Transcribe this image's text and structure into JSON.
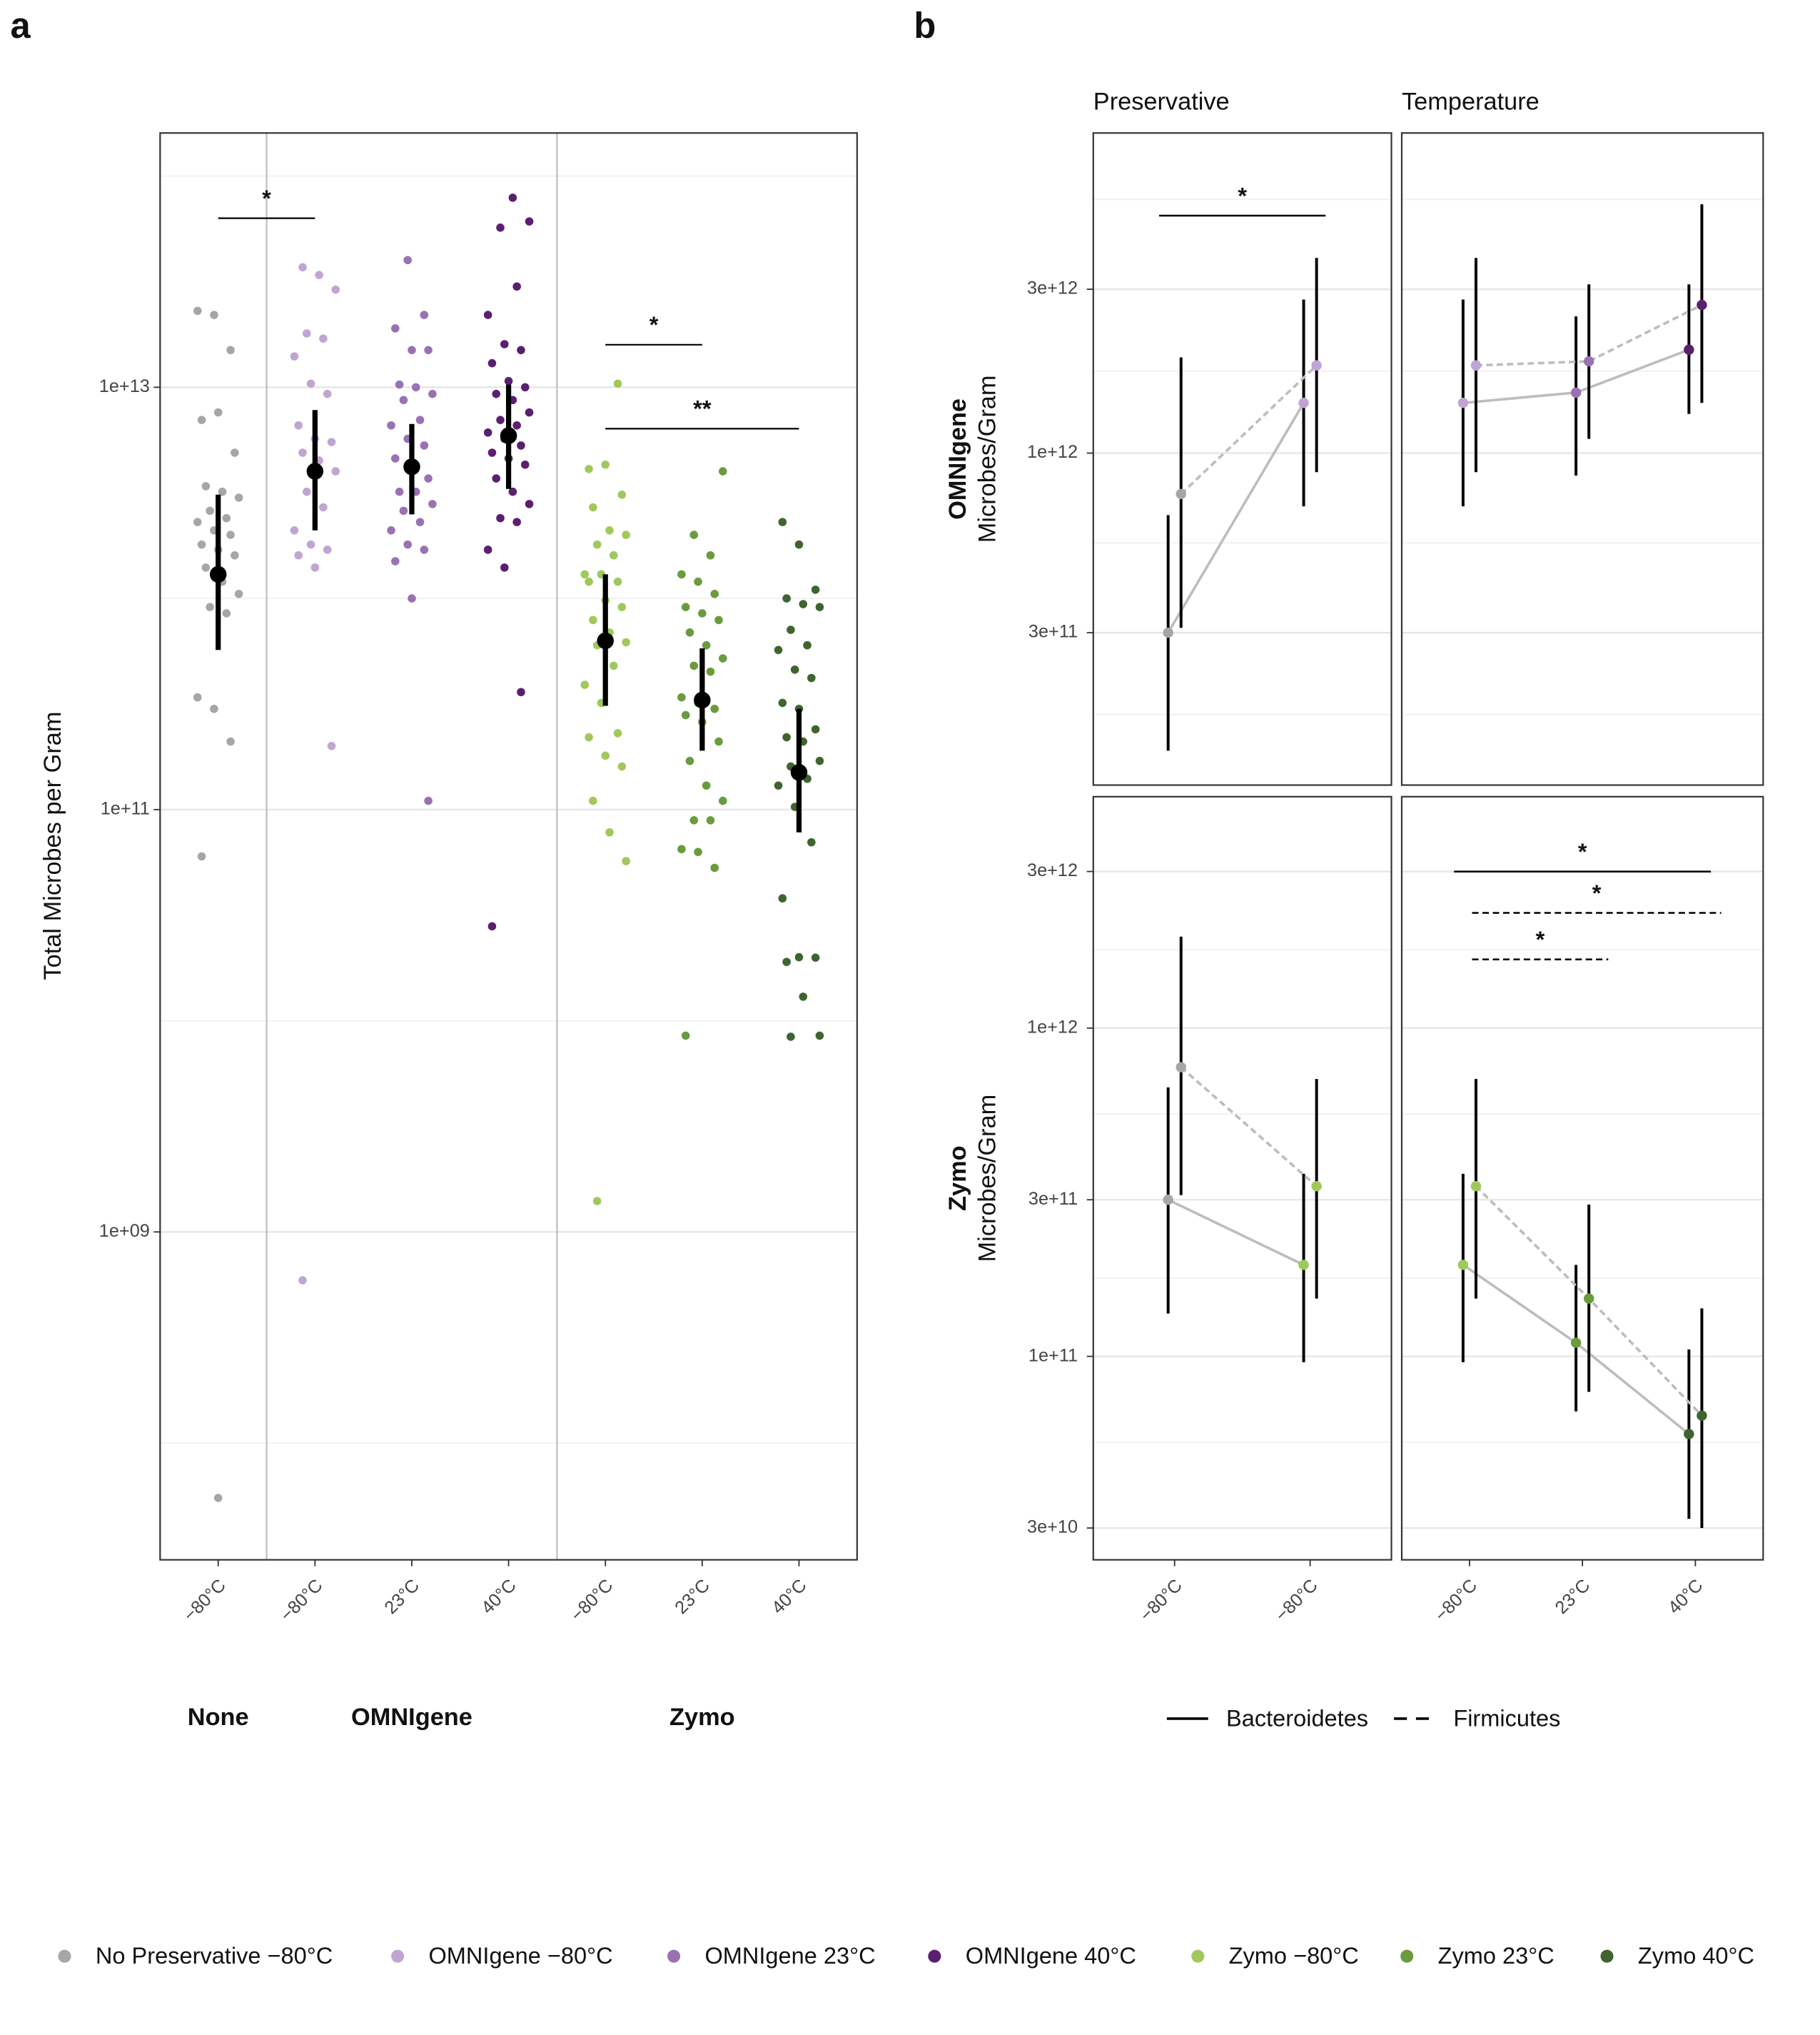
{
  "panel_labels": [
    "a",
    "b"
  ],
  "chart_data": [
    {
      "type": "strip",
      "ylabel": "Total Microbes per Gram",
      "log_y": true,
      "ylim": [
        28000000.0,
        160000000000000.0
      ],
      "yticks": [
        {
          "value": 1000000000.0,
          "label": "1e+09"
        },
        {
          "value": 100000000000.0,
          "label": "1e+11"
        },
        {
          "value": 10000000000000.0,
          "label": "1e+13"
        }
      ],
      "categories": [
        "−80°C",
        "−80°C",
        "23°C",
        "40°C",
        "−80°C",
        "23°C",
        "40°C"
      ],
      "groups": [
        {
          "label": "None",
          "size": 1
        },
        {
          "label": "OMNIgene",
          "size": 3
        },
        {
          "label": "Zymo",
          "size": 3
        }
      ],
      "brackets": [
        {
          "label": "*",
          "between": [
            0,
            1
          ]
        },
        {
          "label": "*",
          "between": [
            4,
            5
          ]
        },
        {
          "label": "**",
          "between": [
            4,
            6
          ]
        }
      ],
      "series": [
        {
          "name": "No Preservative −80°C",
          "color": "#a6a6a6",
          "mean": 1300000000000.0,
          "lower": 570000000000.0,
          "upper": 3100000000000.0,
          "values": [
            23000000000000.0,
            22000000000000.0,
            15000000000000.0,
            7000000000000.0,
            7600000000000.0,
            4900000000000.0,
            3400000000000.0,
            3200000000000.0,
            3000000000000.0,
            2600000000000.0,
            2400000000000.0,
            2300000000000.0,
            2100000000000.0,
            2000000000000.0,
            1800000000000.0,
            1700000000000.0,
            1600000000000.0,
            1400000000000.0,
            1200000000000.0,
            1050000000000.0,
            910000000000.0,
            850000000000.0,
            340000000000.0,
            300000000000.0,
            210000000000.0,
            60000000000.0,
            55000000.0
          ]
        },
        {
          "name": "OMNIgene −80°C",
          "color": "#c0a5d2",
          "mean": 4000000000000.0,
          "lower": 2100000000000.0,
          "upper": 7800000000000.0,
          "values": [
            37000000000000.0,
            34000000000000.0,
            29000000000000.0,
            18000000000000.0,
            17000000000000.0,
            14000000000000.0,
            10400000000000.0,
            9300000000000.0,
            6600000000000.0,
            5700000000000.0,
            5500000000000.0,
            4900000000000.0,
            4500000000000.0,
            4000000000000.0,
            3200000000000.0,
            2700000000000.0,
            2100000000000.0,
            1800000000000.0,
            1700000000000.0,
            1600000000000.0,
            1400000000000.0,
            200000000000.0,
            590000000.0
          ]
        },
        {
          "name": "OMNIgene 23°C",
          "color": "#9a72b3",
          "mean": 4200000000000.0,
          "lower": 2500000000000.0,
          "upper": 6700000000000.0,
          "values": [
            40000000000000.0,
            22000000000000.0,
            19000000000000.0,
            15000000000000.0,
            15000000000000.0,
            10300000000000.0,
            10000000000000.0,
            9300000000000.0,
            8700000000000.0,
            7000000000000.0,
            6600000000000.0,
            5700000000000.0,
            5300000000000.0,
            4600000000000.0,
            4000000000000.0,
            3700000000000.0,
            3200000000000.0,
            3200000000000.0,
            2800000000000.0,
            2600000000000.0,
            2300000000000.0,
            2100000000000.0,
            1800000000000.0,
            1700000000000.0,
            1500000000000.0,
            1000000000000.0,
            110000000000.0
          ]
        },
        {
          "name": "OMNIgene 40°C",
          "color": "#5b1f70",
          "mean": 5900000000000.0,
          "lower": 3300000000000.0,
          "upper": 10300000000000.0,
          "values": [
            79000000000000.0,
            61000000000000.0,
            57000000000000.0,
            30000000000000.0,
            22000000000000.0,
            16000000000000.0,
            15000000000000.0,
            13000000000000.0,
            10700000000000.0,
            10000000000000.0,
            9300000000000.0,
            8700000000000.0,
            7600000000000.0,
            7000000000000.0,
            6600000000000.0,
            6100000000000.0,
            5700000000000.0,
            5300000000000.0,
            4900000000000.0,
            4600000000000.0,
            4300000000000.0,
            3700000000000.0,
            3200000000000.0,
            2800000000000.0,
            2400000000000.0,
            2300000000000.0,
            1700000000000.0,
            1400000000000.0,
            360000000000.0,
            28000000000.0
          ]
        },
        {
          "name": "Zymo −80°C",
          "color": "#a0c95a",
          "mean": 630000000000.0,
          "lower": 310000000000.0,
          "upper": 1300000000000.0,
          "values": [
            10400000000000.0,
            4100000000000.0,
            4300000000000.0,
            3100000000000.0,
            2700000000000.0,
            2100000000000.0,
            2000000000000.0,
            1800000000000.0,
            1600000000000.0,
            1300000000000.0,
            1300000000000.0,
            1200000000000.0,
            1200000000000.0,
            980000000000.0,
            910000000000.0,
            790000000000.0,
            690000000000.0,
            620000000000.0,
            600000000000.0,
            480000000000.0,
            390000000000.0,
            320000000000.0,
            230000000000.0,
            220000000000.0,
            180000000000.0,
            160000000000.0,
            110000000000.0,
            78000000000.0,
            57000000000.0,
            1400000000.0
          ]
        },
        {
          "name": "Zymo 23°C",
          "color": "#6a9b3d",
          "mean": 330000000000.0,
          "lower": 190000000000.0,
          "upper": 580000000000.0,
          "values": [
            4000000000000.0,
            2000000000000.0,
            1600000000000.0,
            1300000000000.0,
            1200000000000.0,
            1050000000000.0,
            910000000000.0,
            850000000000.0,
            790000000000.0,
            690000000000.0,
            600000000000.0,
            520000000000.0,
            480000000000.0,
            450000000000.0,
            340000000000.0,
            320000000000.0,
            300000000000.0,
            280000000000.0,
            260000000000.0,
            210000000000.0,
            170000000000.0,
            130000000000.0,
            110000000000.0,
            89000000000.0,
            89000000000.0,
            65000000000.0,
            63000000000.0,
            53000000000.0,
            8500000000.0
          ]
        },
        {
          "name": "Zymo 40°C",
          "color": "#3f6430",
          "mean": 150000000000.0,
          "lower": 78000000000.0,
          "upper": 300000000000.0,
          "values": [
            2300000000000.0,
            1800000000000.0,
            1100000000000.0,
            1000000000000.0,
            940000000000.0,
            910000000000.0,
            710000000000.0,
            600000000000.0,
            570000000000.0,
            460000000000.0,
            420000000000.0,
            320000000000.0,
            300000000000.0,
            240000000000.0,
            220000000000.0,
            210000000000.0,
            170000000000.0,
            160000000000.0,
            140000000000.0,
            130000000000.0,
            103000000000.0,
            70000000000.0,
            38000000000.0,
            20000000000.0,
            19900000000.0,
            19000000000.0,
            13000000000.0,
            8500000000.0,
            8400000000.0
          ]
        }
      ]
    },
    {
      "type": "facet_line",
      "log_y": true,
      "line_color": "#bdbdbd",
      "columns": [
        "Preservative",
        "Temperature"
      ],
      "legend": [
        {
          "name": "Bacteroidetes",
          "dash": "solid"
        },
        {
          "name": "Firmicutes",
          "dash": "dashed"
        }
      ],
      "rows": [
        {
          "label": "OMNIgene",
          "ylabel": "Microbes/Gram",
          "ylim": [
            108000000000.0,
            8550000000000.0
          ],
          "yticks": [
            {
              "value": 300000000000.0,
              "label": "3e+11"
            },
            {
              "value": 1000000000000.0,
              "label": "1e+12"
            },
            {
              "value": 3000000000000.0,
              "label": "3e+12"
            }
          ]
        },
        {
          "label": "Zymo",
          "ylabel": "Microbes/Gram",
          "ylim": [
            24000000000.0,
            5070000000000.0
          ],
          "yticks": [
            {
              "value": 30000000000.0,
              "label": "3e+10"
            },
            {
              "value": 100000000000.0,
              "label": "1e+11"
            },
            {
              "value": 300000000000.0,
              "label": "3e+11"
            },
            {
              "value": 1000000000000.0,
              "label": "1e+12"
            },
            {
              "value": 3000000000000.0,
              "label": "3e+12"
            }
          ]
        }
      ],
      "facets": [
        [
          {
            "categories": [
              "−80°C",
              "−80°C"
            ],
            "series": [
              {
                "values": [
                  300000000000.0,
                  1400000000000.0
                ],
                "lower": [
                  136000000000.0,
                  700000000000.0
                ],
                "upper": [
                  660000000000.0,
                  2800000000000.0
                ],
                "colors": [
                  "#a6a6a6",
                  "#c0a5d2"
                ]
              },
              {
                "values": [
                  760000000000.0,
                  1800000000000.0
                ],
                "lower": [
                  310000000000.0,
                  880000000000.0
                ],
                "upper": [
                  1900000000000.0,
                  3700000000000.0
                ],
                "colors": [
                  "#a6a6a6",
                  "#c0a5d2"
                ]
              }
            ],
            "brackets": [
              {
                "label": "*",
                "between": [
                  0,
                  1
                ],
                "series": 0
              }
            ]
          },
          {
            "categories": [
              "−80°C",
              "23°C",
              "40°C"
            ],
            "series": [
              {
                "values": [
                  1400000000000.0,
                  1500000000000.0,
                  2000000000000.0
                ],
                "lower": [
                  700000000000.0,
                  860000000000.0,
                  1300000000000.0
                ],
                "upper": [
                  2800000000000.0,
                  2500000000000.0,
                  3100000000000.0
                ],
                "colors": [
                  "#c0a5d2",
                  "#9a72b3",
                  "#5b1f70"
                ]
              },
              {
                "values": [
                  1800000000000.0,
                  1850000000000.0,
                  2700000000000.0
                ],
                "lower": [
                  880000000000.0,
                  1100000000000.0,
                  1400000000000.0
                ],
                "upper": [
                  3700000000000.0,
                  3100000000000.0,
                  5300000000000.0
                ],
                "colors": [
                  "#c0a5d2",
                  "#9a72b3",
                  "#5b1f70"
                ]
              }
            ],
            "brackets": []
          }
        ],
        [
          {
            "categories": [
              "−80°C",
              "−80°C"
            ],
            "series": [
              {
                "values": [
                  300000000000.0,
                  190000000000.0
                ],
                "lower": [
                  135000000000.0,
                  96000000000.0
                ],
                "upper": [
                  660000000000.0,
                  360000000000.0
                ],
                "colors": [
                  "#a6a6a6",
                  "#a0c95a"
                ]
              },
              {
                "values": [
                  760000000000.0,
                  330000000000.0
                ],
                "lower": [
                  310000000000.0,
                  150000000000.0
                ],
                "upper": [
                  1900000000000.0,
                  700000000000.0
                ],
                "colors": [
                  "#a6a6a6",
                  "#a0c95a"
                ]
              }
            ],
            "brackets": []
          },
          {
            "categories": [
              "−80°C",
              "23°C",
              "40°C"
            ],
            "series": [
              {
                "values": [
                  190000000000.0,
                  110000000000.0,
                  58000000000.0
                ],
                "lower": [
                  96000000000.0,
                  68000000000.0,
                  32000000000.0
                ],
                "upper": [
                  360000000000.0,
                  190000000000.0,
                  105000000000.0
                ],
                "colors": [
                  "#a0c95a",
                  "#6a9b3d",
                  "#3f6430"
                ]
              },
              {
                "values": [
                  330000000000.0,
                  150000000000.0,
                  66000000000.0
                ],
                "lower": [
                  150000000000.0,
                  78000000000.0,
                  30000000000.0
                ],
                "upper": [
                  700000000000.0,
                  290000000000.0,
                  140000000000.0
                ],
                "colors": [
                  "#a0c95a",
                  "#6a9b3d",
                  "#3f6430"
                ]
              }
            ],
            "brackets": [
              {
                "label": "*",
                "between": [
                  0,
                  2
                ],
                "series": 0
              },
              {
                "label": "*",
                "between": [
                  0,
                  2
                ],
                "series": 1
              },
              {
                "label": "*",
                "between": [
                  0,
                  1
                ],
                "series": 1
              }
            ]
          }
        ]
      ]
    }
  ]
}
